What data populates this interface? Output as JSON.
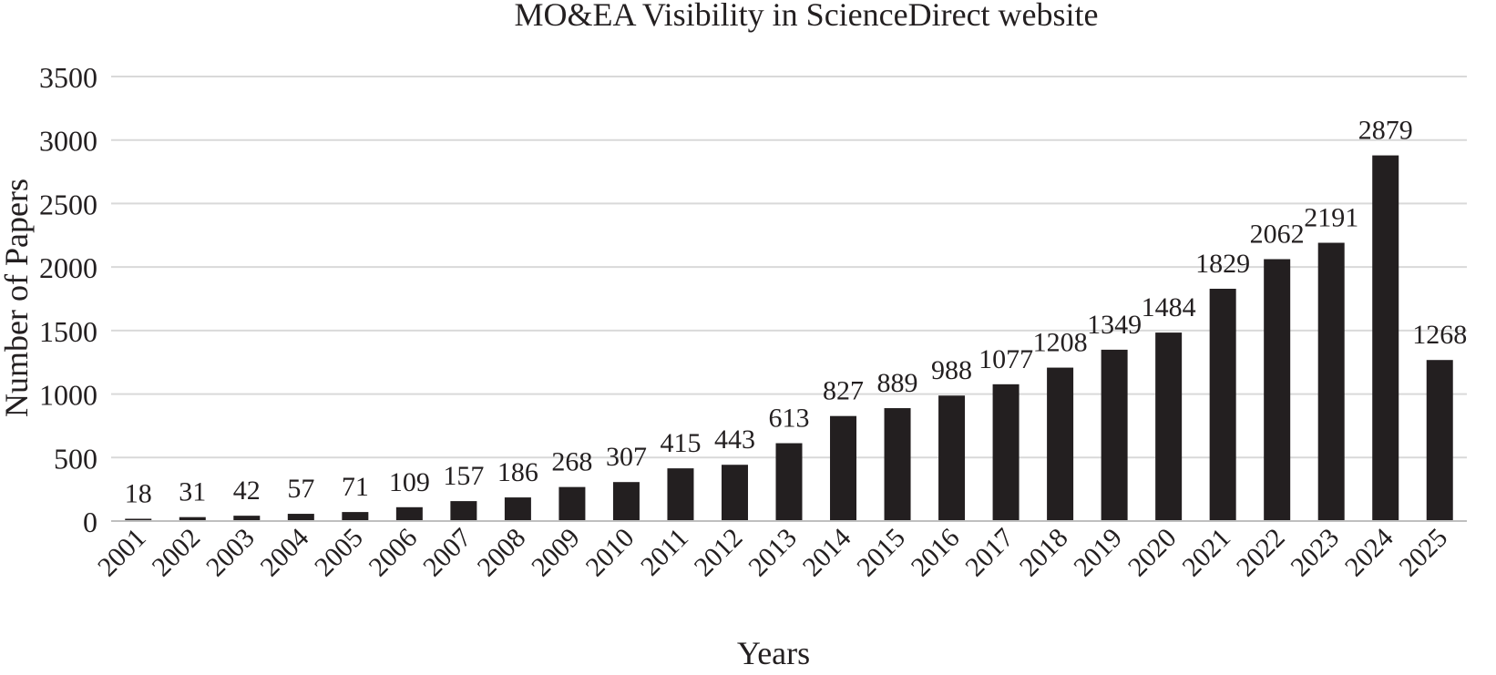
{
  "chart_data": {
    "type": "bar",
    "title": "MO&EA Visibility in ScienceDirect website",
    "xlabel": "Years",
    "ylabel": "Number of Papers",
    "categories": [
      "2001",
      "2002",
      "2003",
      "2004",
      "2005",
      "2006",
      "2007",
      "2008",
      "2009",
      "2010",
      "2011",
      "2012",
      "2013",
      "2014",
      "2015",
      "2016",
      "2017",
      "2018",
      "2019",
      "2020",
      "2021",
      "2022",
      "2023",
      "2024",
      "2025"
    ],
    "values": [
      18,
      31,
      42,
      57,
      71,
      109,
      157,
      186,
      268,
      307,
      415,
      443,
      613,
      827,
      889,
      988,
      1077,
      1208,
      1349,
      1484,
      1829,
      2062,
      2191,
      2879,
      1268
    ],
    "data_labels": [
      "18",
      "31",
      "42",
      "57",
      "71",
      "109",
      "157",
      "186",
      "268",
      "307",
      "415",
      "443",
      "613",
      "827",
      "889",
      "988",
      "1077",
      "1208",
      "1349",
      "1484",
      "1829",
      "2062",
      "2191",
      "2879",
      "1268"
    ],
    "ylim": [
      0,
      3500
    ],
    "yticks": [
      0,
      500,
      1000,
      1500,
      2000,
      2500,
      3000,
      3500
    ],
    "ytick_labels": [
      "0",
      "500",
      "1000",
      "1500",
      "2000",
      "2500",
      "3000",
      "3500"
    ],
    "grid": true,
    "legend": "none",
    "colors": {
      "bar": "#231f20",
      "grid": "#d9d9d9",
      "axis": "#bfbfbf",
      "text": "#231f20"
    }
  }
}
